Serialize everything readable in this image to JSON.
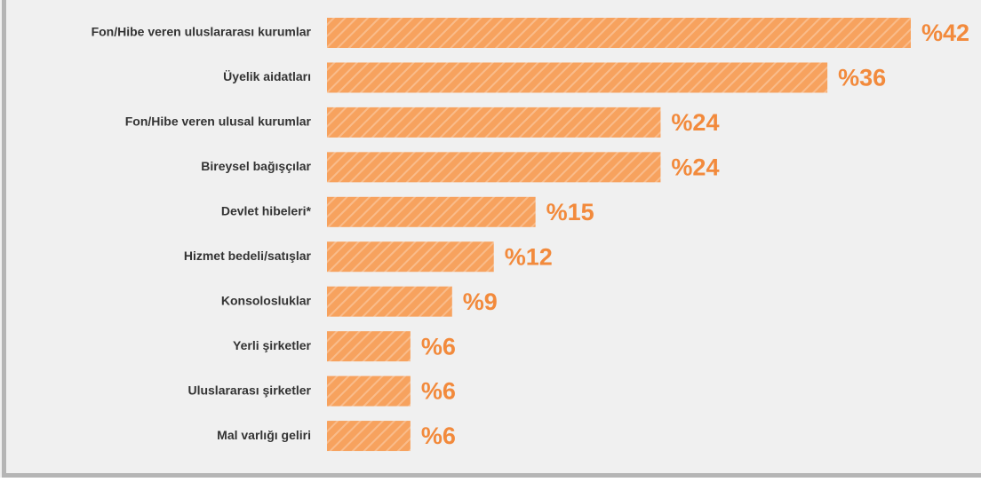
{
  "chart_data": {
    "type": "bar",
    "orientation": "horizontal",
    "categories": [
      "Fon/Hibe veren uluslararası kurumlar",
      "Üyelik aidatları",
      "Fon/Hibe veren ulusal kurumlar",
      "Bireysel bağışçılar",
      "Devlet hibeleri*",
      "Hizmet bedeli/satışlar",
      "Konsolosluklar",
      "Yerli şirketler",
      "Uluslararası şirketler",
      "Mal varlığı geliri"
    ],
    "values": [
      42,
      36,
      24,
      24,
      15,
      12,
      9,
      6,
      6,
      6
    ],
    "value_labels": [
      "%42",
      "%36",
      "%24",
      "%24",
      "%15",
      "%12",
      "%9",
      "%6",
      "%6",
      "%6"
    ],
    "color": "#f7a25e",
    "label_color": "#f28a3c"
  }
}
